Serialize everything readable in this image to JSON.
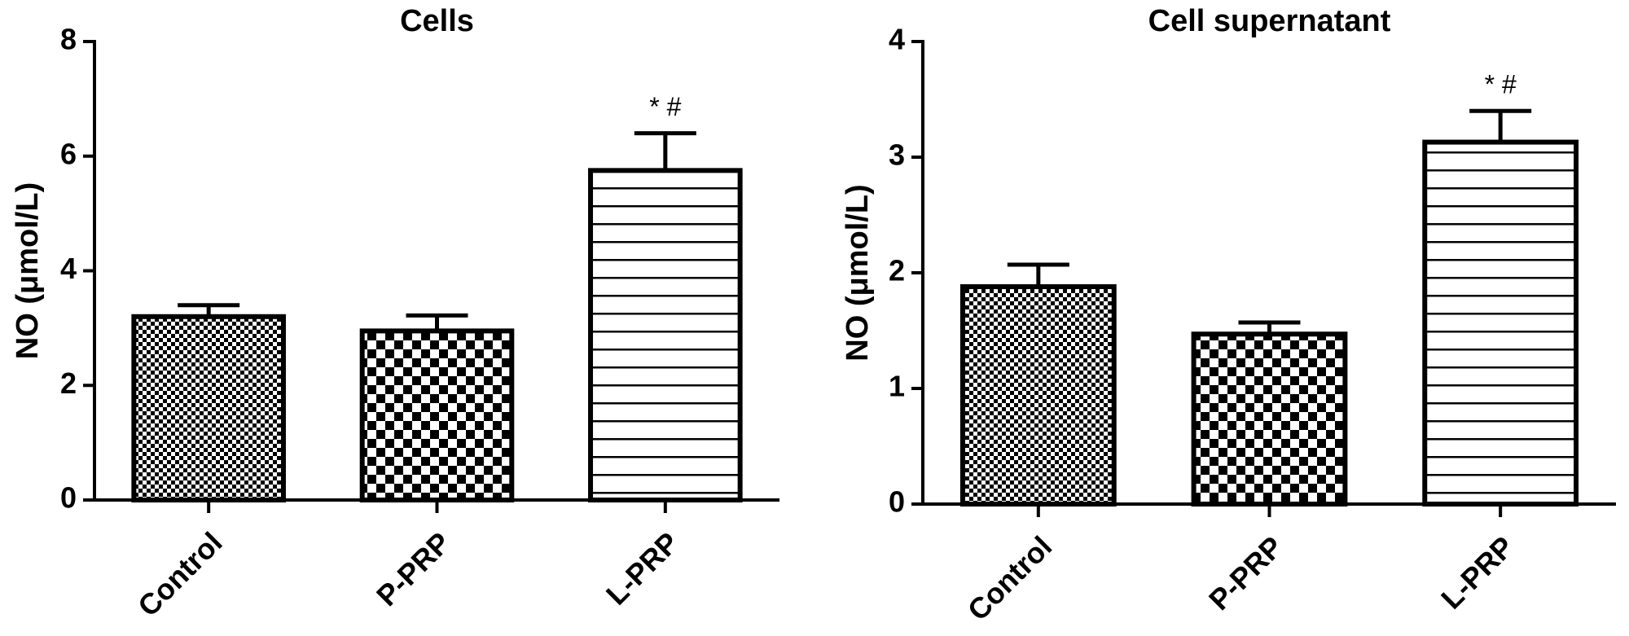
{
  "chart_data": [
    {
      "type": "bar",
      "title": "Cells",
      "y_label": "NO (μmol/L)",
      "categories": [
        "Control",
        "P-PRP",
        "L-PRP"
      ],
      "values": [
        3.2,
        2.95,
        5.75
      ],
      "errors": [
        0.2,
        0.27,
        0.65
      ],
      "annotations": [
        null,
        null,
        "* #"
      ],
      "patterns": [
        "fine-checker",
        "checker",
        "hlines"
      ],
      "color": "#000000",
      "ylim": [
        0,
        8
      ],
      "yticks": [
        0,
        2,
        4,
        6,
        8
      ],
      "grid": false
    },
    {
      "type": "bar",
      "title": "Cell supernatant",
      "y_label": "NO (μmol/L)",
      "categories": [
        "Control",
        "P-PRP",
        "L-PRP"
      ],
      "values": [
        1.88,
        1.47,
        3.13
      ],
      "errors": [
        0.19,
        0.1,
        0.27
      ],
      "annotations": [
        null,
        null,
        "* #"
      ],
      "patterns": [
        "fine-checker",
        "checker",
        "hlines"
      ],
      "color": "#000000",
      "ylim": [
        0,
        4
      ],
      "yticks": [
        0,
        1,
        2,
        3,
        4
      ],
      "grid": false
    }
  ]
}
